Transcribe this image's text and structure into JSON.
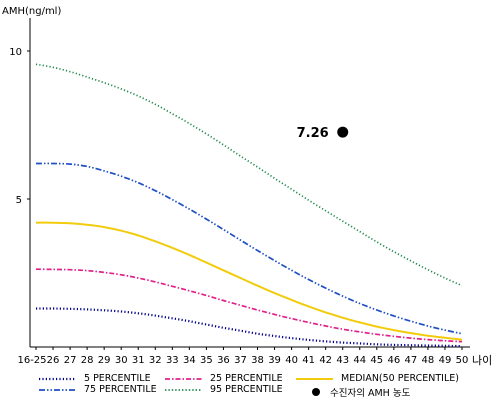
{
  "chart_data": {
    "type": "line",
    "ylabel": "AMH(ng/ml)",
    "xlabel": "나이",
    "ylim": [
      0,
      11
    ],
    "yticks": [
      "10",
      "5"
    ],
    "x_tick_labels": [
      "16-25",
      "26",
      "27",
      "28",
      "29",
      "30",
      "31",
      "32",
      "33",
      "34",
      "35",
      "36",
      "37",
      "38",
      "39",
      "40",
      "41",
      "42",
      "43",
      "44",
      "45",
      "46",
      "47",
      "48",
      "49",
      "50"
    ],
    "x": [
      25,
      26,
      27,
      28,
      29,
      30,
      31,
      32,
      33,
      34,
      35,
      36,
      37,
      38,
      39,
      40,
      41,
      42,
      43,
      44,
      45,
      46,
      47,
      48,
      49,
      50
    ],
    "series": [
      {
        "name": "5 PERCENTILE",
        "color": "#00008b",
        "style": "dotted",
        "values": [
          1.3,
          1.3,
          1.29,
          1.27,
          1.24,
          1.2,
          1.14,
          1.06,
          0.97,
          0.87,
          0.76,
          0.65,
          0.55,
          0.45,
          0.37,
          0.3,
          0.24,
          0.19,
          0.15,
          0.12,
          0.09,
          0.07,
          0.06,
          0.05,
          0.04,
          0.03
        ]
      },
      {
        "name": "25 PERCENTILE",
        "color": "#e0218a",
        "style": "dashdot",
        "values": [
          2.63,
          2.62,
          2.61,
          2.58,
          2.52,
          2.44,
          2.33,
          2.2,
          2.05,
          1.9,
          1.74,
          1.57,
          1.41,
          1.25,
          1.1,
          0.96,
          0.83,
          0.71,
          0.6,
          0.51,
          0.43,
          0.36,
          0.3,
          0.25,
          0.21,
          0.18
        ]
      },
      {
        "name": "MEDIAN(50 PERCENTILE)",
        "color": "#f2cc0c",
        "style": "solid",
        "values": [
          4.2,
          4.2,
          4.18,
          4.13,
          4.05,
          3.93,
          3.77,
          3.57,
          3.35,
          3.11,
          2.85,
          2.59,
          2.33,
          2.07,
          1.82,
          1.59,
          1.37,
          1.17,
          0.99,
          0.83,
          0.69,
          0.57,
          0.47,
          0.38,
          0.31,
          0.25
        ]
      },
      {
        "name": "75 PERCENTILE",
        "color": "#1e4fc4",
        "style": "dashdotdot",
        "values": [
          6.2,
          6.2,
          6.18,
          6.1,
          5.95,
          5.77,
          5.55,
          5.28,
          4.98,
          4.66,
          4.32,
          3.97,
          3.61,
          3.26,
          2.92,
          2.59,
          2.28,
          1.99,
          1.72,
          1.47,
          1.25,
          1.05,
          0.87,
          0.71,
          0.57,
          0.45
        ]
      },
      {
        "name": "95 PERCENTILE",
        "color": "#1f8a4c",
        "style": "dotted",
        "values": [
          9.55,
          9.45,
          9.3,
          9.12,
          8.93,
          8.72,
          8.48,
          8.2,
          7.88,
          7.55,
          7.2,
          6.83,
          6.45,
          6.08,
          5.7,
          5.33,
          4.96,
          4.6,
          4.25,
          3.9,
          3.55,
          3.22,
          2.91,
          2.61,
          2.33,
          2.07
        ]
      }
    ],
    "point": {
      "name": "수진자의 AMH 농도",
      "x": 43,
      "y": 7.26,
      "label": "7.26"
    }
  }
}
